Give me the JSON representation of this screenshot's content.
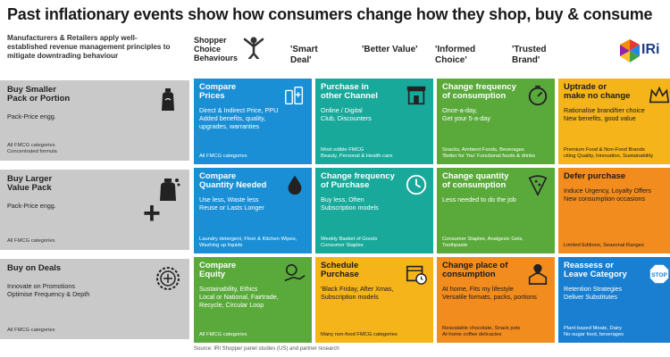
{
  "title": "Past inflationary events show how consumers change how they shop, buy & consume",
  "intro": "Manufacturers & Retailers apply well-established revenue management principles to mitigate downtrading behaviour",
  "logo_text": "IRi",
  "shopper_label": "Shopper Choice Behaviours",
  "columns": [
    "'Smart\nDeal'",
    "'Better Value'",
    "'Informed\nChoice'",
    "'Trusted\nBrand'"
  ],
  "plus_symbol": "+",
  "left_cards": [
    {
      "title": "Buy Smaller\nPack or Portion",
      "body": "Pack-Price engg.",
      "footer": "All FMCG categories\nConcentrated formula",
      "icon": "detergent-bottle-icon"
    },
    {
      "title": "Buy Larger\nValue Pack",
      "body": "Pack-Price engg.",
      "footer": "All FMCG categories",
      "icon": "large-pack-icon"
    },
    {
      "title": "Buy on Deals",
      "body": "Innovate on Promotions\nOptimise Frequency & Depth",
      "footer": "All FMCG categories",
      "icon": "price-tag-badge-icon"
    }
  ],
  "cards": [
    [
      {
        "title": "Compare\nPrices",
        "body": "Direct & Indirect Price, PPU\nAdded benefits, quality,\nupgrades, warranties",
        "footer": "All FMCG categories",
        "color": "#1a8fd6",
        "icon": "compare-bottles-icon"
      },
      {
        "title": "Purchase in\nother Channel",
        "body": "Online / Digital\nClub, Discounters",
        "footer": "Most edible FMCG\nBeauty, Personal & Health care",
        "color": "#18a99a",
        "icon": "storefront-icon"
      },
      {
        "title": "Change frequency\nof consumption",
        "body": "Once-a-day,\nGet your 5-a-day",
        "footer": "Snacks, Ambient Foods, Beverages\n'Better for You' Functional foods & drinks",
        "color": "#5aaa3b",
        "icon": "timer-icon"
      },
      {
        "title": "Uptrade or\nmake no change",
        "body": "Rationalise brand/tier choice\nNew benefits, good value",
        "footer": "Premium Food & Non-Food Brands\nciting Quality, Innovation, Sustainability",
        "color": "#f4b41a",
        "icon": "crown-icon"
      }
    ],
    [
      {
        "title": "Compare\nQuantity Needed",
        "body": "Use less, Waste less\nReuse or Lasts Longer",
        "footer": "Laundry detergent, Floor & Kitchen Wipes,\nWashing up liquids",
        "color": "#1a8fd6",
        "icon": "water-drop-icon"
      },
      {
        "title": "Change frequency\nof Purchase",
        "body": "Buy less, Often\nSubscription models",
        "footer": "Weekly Basket of Goods\nConsumer Staples",
        "color": "#18a99a",
        "icon": "clock-icon"
      },
      {
        "title": "Change quantity\nof consumption",
        "body": "Less needed to do the job",
        "footer": "Consumer Staples, Analgesic Gels,\nToothpaste",
        "color": "#5aaa3b",
        "icon": "pizza-slice-icon"
      },
      {
        "title": "Defer purchase",
        "body": "Induce Urgency, Loyalty Offers\nNew consumption occasions",
        "footer": "Limited Editions, Seasonal Ranges",
        "color": "#f28c1e",
        "icon": ""
      }
    ],
    [
      {
        "title": "Compare\nEquity",
        "body": "Sustainability, Ethics\nLocal or National, Fairtrade,\nRecycle, Circular Loop",
        "footer": "All FMCG categories",
        "color": "#5aaa3b",
        "icon": "recycle-hand-icon"
      },
      {
        "title": "Schedule\nPurchase",
        "body": "'Black Friday, After Xmas,\nSubscription models",
        "footer": "Many non-food FMCG categories",
        "color": "#f4b41a",
        "icon": "calendar-clock-icon"
      },
      {
        "title": "Change place of\nconsumption",
        "body": "At home, Fits my lifestyle\nVersatile formats, packs, portions",
        "footer": "Resealable chocolate, Snack pots\nAt-home coffee delicacies",
        "color": "#f28c1e",
        "icon": "location-house-icon"
      },
      {
        "title": "Reassess or\nLeave Category",
        "body": "Retention Strategies\nDeliver Substitutes",
        "footer": "Plant-based Meats, Dairy\nNo-sugar food, beverages",
        "color": "#1a7fd0",
        "icon": "stop-sign-icon"
      }
    ]
  ],
  "source": "Source: IRI Shopper panel studies (US) and partner research"
}
